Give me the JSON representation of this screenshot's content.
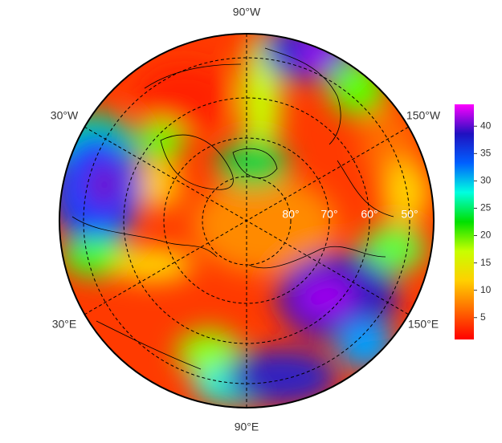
{
  "map": {
    "projection": "north polar stereographic",
    "lon_labels": [
      "90°W",
      "30°W",
      "150°W",
      "30°E",
      "150°E",
      "90°E"
    ],
    "lat_labels": [
      "80°",
      "70°",
      "60°",
      "50°"
    ]
  },
  "colorbar": {
    "lim": [
      1,
      44
    ],
    "ticks": [
      5,
      10,
      15,
      20,
      25,
      30,
      35,
      40
    ],
    "colors": [
      "#ff0000",
      "#ff6a00",
      "#ffd000",
      "#c8ff00",
      "#00e000",
      "#00ffe0",
      "#0060ff",
      "#2010c0",
      "#ff00ff"
    ]
  }
}
